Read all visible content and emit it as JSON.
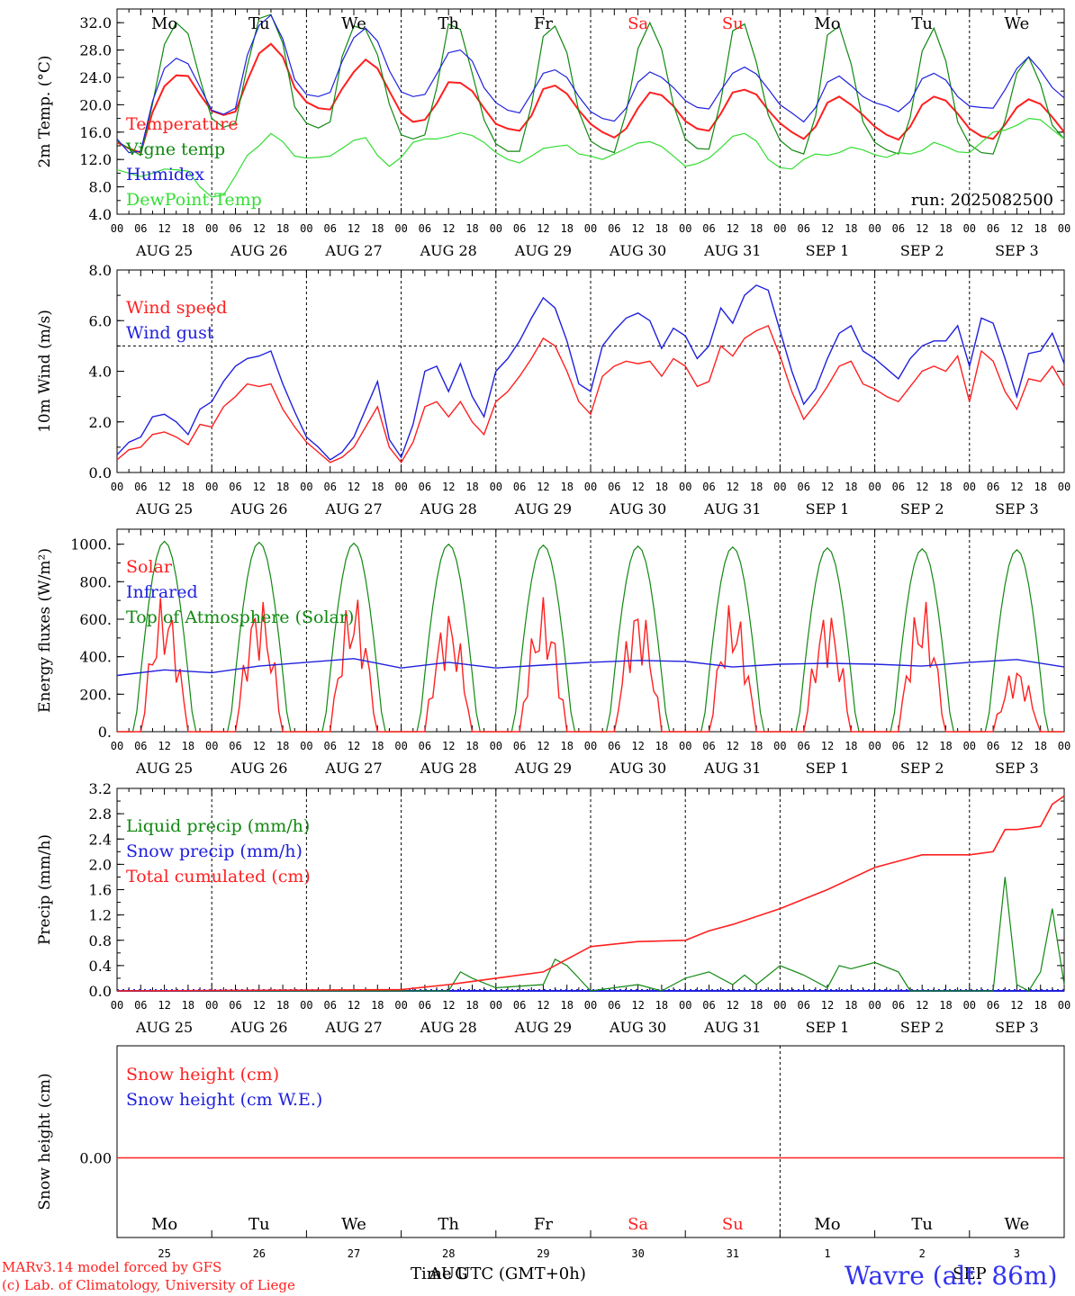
{
  "panel_ylabels": {
    "temp": "2m Temp. (°C)",
    "wind": "10m Wind (m/s)",
    "energy": "Energy fluxes (W/m²)",
    "precip": "Precip (mm/h)",
    "snow": "Snow height (cm)"
  },
  "run_label": "run: 2025082500",
  "date_labels": [
    "AUG 25",
    "AUG 26",
    "AUG 27",
    "AUG 28",
    "AUG 29",
    "AUG 30",
    "AUG 31",
    "SEP  1",
    "SEP  2",
    "SEP  3"
  ],
  "day_labels": [
    "Mo",
    "Tu",
    "We",
    "Th",
    "Fr",
    "Sa",
    "Su",
    "Mo",
    "Tu",
    "We"
  ],
  "day_numbers": [
    "25",
    "26",
    "27",
    "28",
    "29",
    "30",
    "31",
    "1",
    "2",
    "3"
  ],
  "hour_ticks": [
    "00",
    "06",
    "12",
    "18"
  ],
  "month_labels": [
    "AUG",
    "SEP"
  ],
  "xlabel": "Time UTC (GMT+0h)",
  "credit_line1": "MARv3.14 model forced by GFS",
  "credit_line2": "(c) Lab. of Climatology, University of Liege",
  "station": "Wavre (alt. 86m)",
  "colors": {
    "red": "#ff2020",
    "green": "#118811",
    "blue": "#2020dd",
    "lightgreen": "#33dd33",
    "weekend": "#ff2020"
  },
  "chart_data": [
    {
      "type": "line",
      "ylabel": "2m Temp. (°C)",
      "ylim": [
        4,
        34
      ],
      "yticks": [
        "4.0",
        "8.0",
        "12.0",
        "16.0",
        "20.0",
        "24.0",
        "28.0",
        "32.0"
      ],
      "x_unit": "hours since 2025-08-25 00 UTC",
      "x": [
        0,
        3,
        6,
        9,
        12,
        15,
        18,
        21,
        24,
        27,
        30,
        33,
        36,
        39,
        42,
        45,
        48,
        51,
        54,
        57,
        60,
        63,
        66,
        69,
        72,
        75,
        78,
        81,
        84,
        87,
        90,
        93,
        96,
        99,
        102,
        105,
        108,
        111,
        114,
        117,
        120,
        123,
        126,
        129,
        132,
        135,
        138,
        141,
        144,
        147,
        150,
        153,
        156,
        159,
        162,
        165,
        168,
        171,
        174,
        177,
        180,
        183,
        186,
        189,
        192,
        195,
        198,
        201,
        204,
        207,
        210,
        213,
        216,
        219,
        222,
        225,
        228,
        231,
        234,
        237,
        240
      ],
      "series": [
        {
          "name": "Temperature",
          "color": "#ff2020",
          "values": [
            14.5,
            13.6,
            13.0,
            18.9,
            22.7,
            24.3,
            24.2,
            21.5,
            19.1,
            18.5,
            19.0,
            23.5,
            27.5,
            28.9,
            27.0,
            22.5,
            20.4,
            19.5,
            19.3,
            22.3,
            24.8,
            26.6,
            25.3,
            22.0,
            18.8,
            17.5,
            17.8,
            20.2,
            23.3,
            23.2,
            22.0,
            19.5,
            17.2,
            16.5,
            16.2,
            18.4,
            22.3,
            22.8,
            21.6,
            19.2,
            17.2,
            16.0,
            15.2,
            16.5,
            19.5,
            21.8,
            21.4,
            19.8,
            17.6,
            16.5,
            16.2,
            18.7,
            21.8,
            22.2,
            21.5,
            19.2,
            17.3,
            16.0,
            15.0,
            16.8,
            20.3,
            21.2,
            20.0,
            18.5,
            16.8,
            15.6,
            14.9,
            16.8,
            20.0,
            21.2,
            20.6,
            18.7,
            16.5,
            15.4,
            15.0,
            17.1,
            19.6,
            20.8,
            20.1,
            18.2,
            16.0
          ]
        },
        {
          "name": "Vigne temp",
          "color": "#118811",
          "values": [
            14.7,
            13.6,
            12.6,
            20.1,
            28.8,
            32.0,
            30.4,
            23.8,
            18.0,
            16.7,
            17.3,
            25.6,
            32.6,
            33.2,
            29.0,
            19.7,
            17.3,
            16.6,
            17.5,
            27.0,
            31.5,
            31.0,
            27.3,
            20.1,
            15.6,
            15.0,
            15.6,
            22.5,
            31.8,
            31.0,
            24.6,
            17.8,
            14.3,
            13.2,
            13.2,
            19.9,
            30.0,
            31.5,
            27.6,
            19.0,
            14.7,
            13.6,
            13.0,
            18.9,
            28.2,
            32.0,
            28.1,
            20.0,
            15.0,
            13.6,
            13.5,
            20.6,
            30.8,
            31.8,
            26.2,
            18.5,
            14.8,
            13.4,
            12.8,
            18.4,
            30.2,
            31.5,
            26.0,
            17.5,
            14.5,
            13.4,
            12.8,
            18.2,
            27.8,
            31.2,
            26.4,
            17.5,
            14.2,
            13.0,
            12.8,
            17.7,
            24.6,
            27.0,
            23.0,
            17.0,
            15.0
          ]
        },
        {
          "name": "Humidex",
          "color": "#2020dd",
          "values": [
            15.0,
            13.0,
            13.2,
            20.5,
            25.3,
            26.8,
            26.0,
            22.6,
            19.2,
            18.6,
            19.5,
            27.2,
            31.6,
            33.1,
            29.6,
            23.7,
            21.5,
            21.2,
            21.8,
            26.3,
            29.8,
            31.2,
            29.3,
            25.0,
            21.9,
            21.2,
            21.5,
            24.5,
            27.6,
            28.0,
            26.4,
            22.5,
            20.3,
            19.2,
            18.8,
            21.6,
            24.6,
            25.1,
            24.0,
            21.2,
            19.0,
            18.0,
            17.6,
            19.5,
            23.3,
            24.8,
            24.0,
            22.5,
            20.6,
            19.6,
            19.4,
            22.1,
            24.6,
            25.5,
            24.5,
            22.3,
            20.0,
            18.8,
            17.5,
            19.6,
            23.3,
            24.2,
            22.8,
            21.2,
            20.3,
            19.8,
            19.0,
            20.5,
            23.8,
            24.6,
            23.6,
            21.2,
            19.8,
            19.6,
            19.5,
            22.2,
            25.3,
            27.0,
            25.0,
            22.5,
            21.0
          ]
        },
        {
          "name": "DewPoint Temp",
          "color": "#33dd33",
          "values": [
            10.5,
            10.0,
            9.5,
            10.0,
            10.6,
            10.5,
            10.3,
            8.0,
            6.5,
            6.8,
            9.6,
            12.6,
            14.0,
            15.8,
            14.6,
            12.5,
            12.2,
            12.3,
            12.5,
            13.6,
            14.8,
            15.2,
            12.6,
            11.0,
            12.3,
            14.5,
            15.0,
            15.0,
            15.4,
            15.9,
            15.5,
            14.5,
            13.0,
            12.0,
            11.5,
            12.5,
            13.6,
            13.9,
            14.1,
            12.8,
            12.5,
            12.0,
            12.8,
            13.6,
            14.4,
            14.6,
            13.9,
            12.5,
            11.0,
            11.4,
            12.2,
            13.7,
            15.4,
            15.8,
            14.7,
            12.0,
            10.8,
            10.6,
            12.0,
            12.8,
            12.6,
            13.0,
            13.8,
            13.4,
            12.7,
            12.3,
            13.0,
            12.8,
            13.3,
            14.5,
            13.9,
            13.1,
            13.0,
            14.5,
            16.0,
            16.3,
            17.0,
            18.0,
            17.8,
            16.4,
            15.0
          ]
        }
      ]
    },
    {
      "type": "line",
      "ylabel": "10m Wind (m/s)",
      "ylim": [
        0,
        8
      ],
      "yticks": [
        "0.0",
        "2.0",
        "4.0",
        "6.0",
        "8.0"
      ],
      "reference_line": 5.0,
      "x_unit": "hours since 2025-08-25 00 UTC",
      "x": [
        0,
        3,
        6,
        9,
        12,
        15,
        18,
        21,
        24,
        27,
        30,
        33,
        36,
        39,
        42,
        45,
        48,
        51,
        54,
        57,
        60,
        63,
        66,
        69,
        72,
        75,
        78,
        81,
        84,
        87,
        90,
        93,
        96,
        99,
        102,
        105,
        108,
        111,
        114,
        117,
        120,
        123,
        126,
        129,
        132,
        135,
        138,
        141,
        144,
        147,
        150,
        153,
        156,
        159,
        162,
        165,
        168,
        171,
        174,
        177,
        180,
        183,
        186,
        189,
        192,
        195,
        198,
        201,
        204,
        207,
        210,
        213,
        216,
        219,
        222,
        225,
        228,
        231,
        234,
        237,
        240
      ],
      "series": [
        {
          "name": "Wind speed",
          "color": "#ff2020",
          "values": [
            0.5,
            0.9,
            1.0,
            1.5,
            1.6,
            1.4,
            1.1,
            1.9,
            1.8,
            2.6,
            3.0,
            3.5,
            3.4,
            3.5,
            2.5,
            1.8,
            1.2,
            0.8,
            0.4,
            0.6,
            1.0,
            1.8,
            2.6,
            1.0,
            0.4,
            1.2,
            2.6,
            2.8,
            2.2,
            2.8,
            2.0,
            1.5,
            2.8,
            3.2,
            3.8,
            4.5,
            5.3,
            5.0,
            4.0,
            2.8,
            2.3,
            3.8,
            4.2,
            4.4,
            4.3,
            4.4,
            3.8,
            4.5,
            4.2,
            3.4,
            3.6,
            5.0,
            4.6,
            5.3,
            5.6,
            5.8,
            4.6,
            3.2,
            2.1,
            2.7,
            3.4,
            4.2,
            4.4,
            3.5,
            3.3,
            3.0,
            2.8,
            3.4,
            4.0,
            4.2,
            4.0,
            4.6,
            2.8,
            4.8,
            4.4,
            3.2,
            2.5,
            3.7,
            3.6,
            4.2,
            3.4
          ]
        },
        {
          "name": "Wind gust",
          "color": "#2020dd",
          "values": [
            0.7,
            1.2,
            1.4,
            2.2,
            2.3,
            2.0,
            1.5,
            2.5,
            2.8,
            3.6,
            4.2,
            4.5,
            4.6,
            4.8,
            3.5,
            2.4,
            1.4,
            1.0,
            0.5,
            0.8,
            1.4,
            2.5,
            3.6,
            1.3,
            0.6,
            1.9,
            4.0,
            4.2,
            3.2,
            4.3,
            3.0,
            2.2,
            4.0,
            4.5,
            5.2,
            6.1,
            6.9,
            6.5,
            5.2,
            3.5,
            3.2,
            5.0,
            5.6,
            6.1,
            6.3,
            6.0,
            4.9,
            5.7,
            5.4,
            4.5,
            5.0,
            6.5,
            5.9,
            7.0,
            7.4,
            7.2,
            5.6,
            4.0,
            2.7,
            3.3,
            4.5,
            5.5,
            5.8,
            4.8,
            4.5,
            4.1,
            3.7,
            4.5,
            5.0,
            5.2,
            5.2,
            5.8,
            4.2,
            6.1,
            5.9,
            4.5,
            3.0,
            4.7,
            4.8,
            5.5,
            4.3
          ]
        }
      ]
    },
    {
      "type": "line",
      "ylabel": "Energy fluxes (W/m²)",
      "ylim": [
        0,
        1080
      ],
      "yticks": [
        "0.",
        "200.",
        "400.",
        "600.",
        "800.",
        "1000."
      ],
      "x_unit": "hours since 2025-08-25 00 UTC",
      "series": [
        {
          "name": "Solar",
          "color": "#ff2020",
          "note": "daily peaks (W/m2) for days AUG 25..SEP 3",
          "daily_peak": [
            740,
            740,
            750,
            670,
            720,
            710,
            700,
            680,
            720,
            360
          ]
        },
        {
          "name": "Infrared",
          "color": "#2020dd",
          "x": [
            0,
            12,
            24,
            36,
            48,
            60,
            72,
            84,
            96,
            108,
            120,
            132,
            144,
            156,
            168,
            180,
            192,
            204,
            216,
            228,
            240
          ],
          "values": [
            300,
            330,
            315,
            350,
            370,
            390,
            340,
            370,
            340,
            355,
            370,
            380,
            375,
            345,
            360,
            365,
            360,
            350,
            370,
            385,
            345
          ]
        },
        {
          "name": "Top of Atmosphere (Solar)",
          "color": "#118811",
          "note": "daily peaks (W/m2) for days AUG 25..SEP 3",
          "daily_peak": [
            1015,
            1010,
            1005,
            1000,
            995,
            990,
            985,
            980,
            975,
            970
          ]
        }
      ]
    },
    {
      "type": "line",
      "ylabel": "Precip (mm/h)",
      "ylim": [
        0,
        3.2
      ],
      "yticks": [
        "0.0",
        "0.4",
        "0.8",
        "1.2",
        "1.6",
        "2.0",
        "2.4",
        "2.8",
        "3.2"
      ],
      "x_unit": "hours since 2025-08-25 00 UTC",
      "series": [
        {
          "name": "Liquid precip (mm/h)",
          "color": "#118811",
          "x": [
            0,
            48,
            72,
            84,
            87,
            90,
            96,
            108,
            111,
            114,
            117,
            120,
            126,
            132,
            138,
            144,
            150,
            156,
            159,
            162,
            168,
            174,
            180,
            183,
            186,
            192,
            198,
            201,
            204,
            210,
            216,
            222,
            225,
            228,
            231,
            234,
            237,
            240
          ],
          "values": [
            0,
            0,
            0,
            0,
            0.3,
            0.2,
            0.05,
            0.1,
            0.5,
            0.4,
            0.2,
            0.0,
            0.05,
            0.1,
            0.0,
            0.2,
            0.3,
            0.1,
            0.25,
            0.1,
            0.4,
            0.25,
            0.05,
            0.4,
            0.35,
            0.45,
            0.3,
            0.0,
            0.0,
            0.0,
            0.0,
            0.0,
            1.8,
            0.1,
            0.0,
            0.3,
            1.3,
            0.1
          ]
        },
        {
          "name": "Snow precip (mm/h)",
          "color": "#2020dd",
          "x": [
            0,
            240
          ],
          "values": [
            0,
            0
          ]
        },
        {
          "name": "Total cumulated (cm)",
          "color": "#ff2020",
          "x": [
            0,
            72,
            84,
            96,
            108,
            114,
            120,
            132,
            144,
            150,
            156,
            168,
            180,
            192,
            204,
            216,
            222,
            225,
            228,
            234,
            237,
            240
          ],
          "values": [
            0,
            0.02,
            0.1,
            0.2,
            0.3,
            0.5,
            0.7,
            0.78,
            0.8,
            0.95,
            1.05,
            1.3,
            1.6,
            1.95,
            2.15,
            2.15,
            2.2,
            2.55,
            2.55,
            2.6,
            2.95,
            3.08
          ]
        }
      ]
    },
    {
      "type": "line",
      "ylabel": "Snow height (cm)",
      "yticks": [
        "0.00"
      ],
      "x_unit": "hours since 2025-08-25 00 UTC",
      "series": [
        {
          "name": "Snow height (cm)",
          "color": "#ff2020",
          "x": [
            0,
            240
          ],
          "values": [
            0,
            0
          ]
        },
        {
          "name": "Snow height (cm W.E.)",
          "color": "#2020dd",
          "x": [
            0,
            240
          ],
          "values": [
            0,
            0
          ]
        }
      ]
    }
  ]
}
